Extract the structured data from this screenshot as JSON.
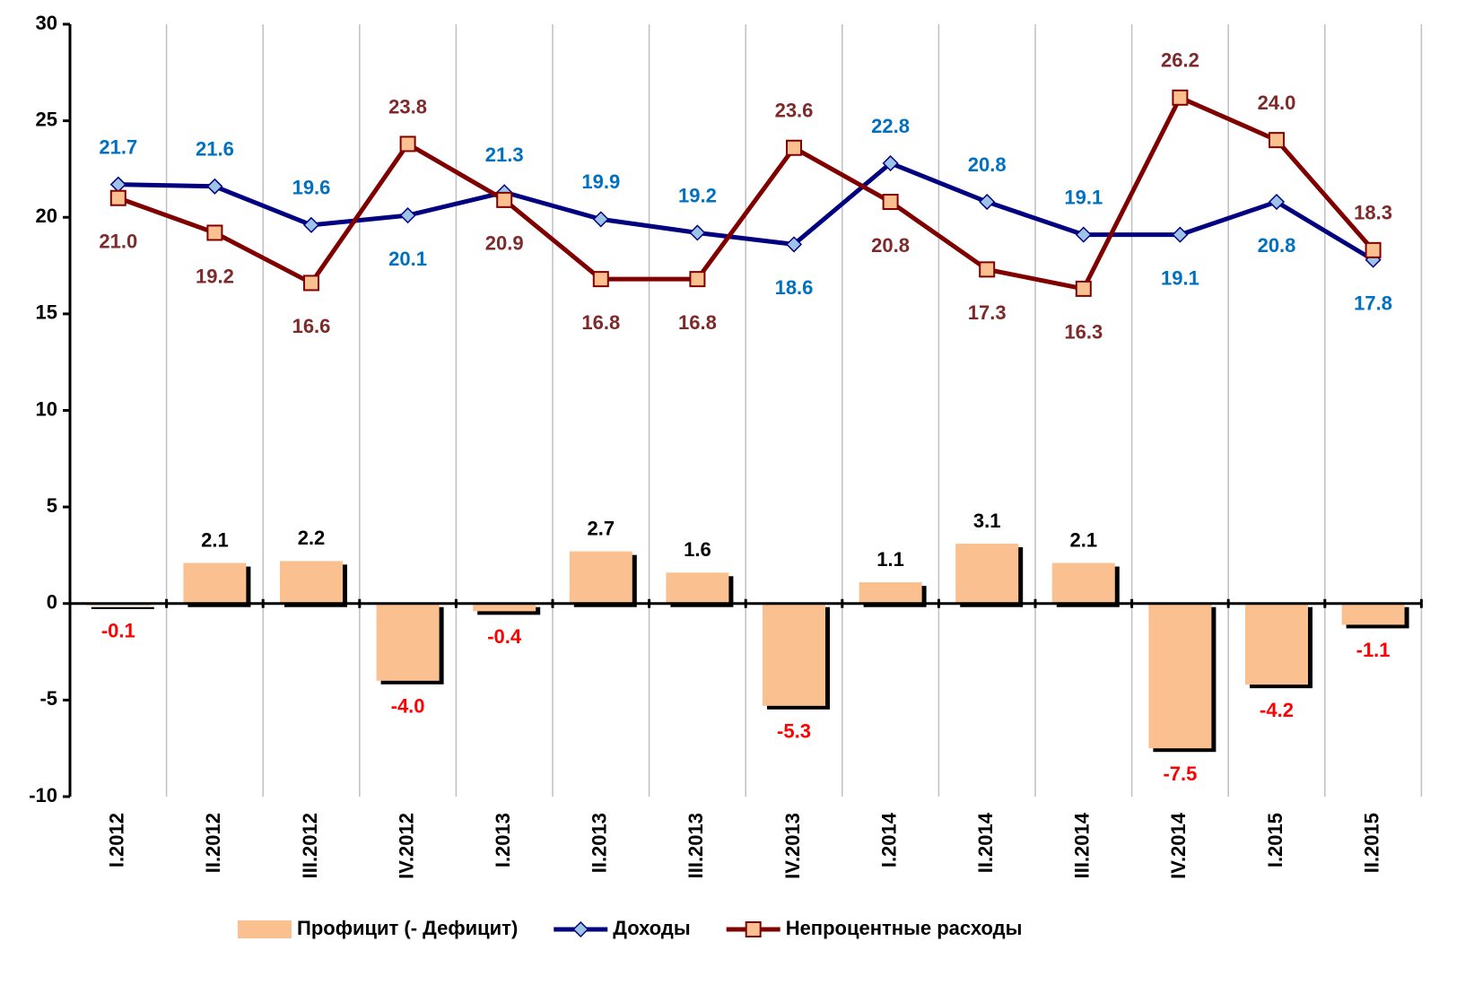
{
  "chart_data": {
    "type": "bar_line",
    "categories": [
      "I.2012",
      "II.2012",
      "III.2012",
      "IV.2012",
      "I.2013",
      "II.2013",
      "III.2013",
      "IV.2013",
      "I.2014",
      "II.2014",
      "III.2014",
      "IV.2014",
      "I.2015",
      "II.2015"
    ],
    "series": [
      {
        "name": "Профицит (- Дефицит)",
        "type": "bar",
        "color": "#fac090",
        "values": [
          -0.1,
          2.1,
          2.2,
          -4.0,
          -0.4,
          2.7,
          1.6,
          -5.3,
          1.1,
          3.1,
          2.1,
          -7.5,
          -4.2,
          -1.1
        ],
        "value_labels": [
          "-0.1",
          "2.1",
          "2.2",
          "-4.0",
          "-0.4",
          "2.7",
          "1.6",
          "-5.3",
          "1.1",
          "3.1",
          "2.1",
          "-7.5",
          "-4.2",
          "-1.1"
        ]
      },
      {
        "name": "Доходы",
        "type": "line",
        "color": "#000080",
        "marker": "diamond",
        "marker_color": "#9dc3e6",
        "label_color": "#0070c0",
        "values": [
          21.7,
          21.6,
          19.6,
          20.1,
          21.3,
          19.9,
          19.2,
          18.6,
          22.8,
          20.8,
          19.1,
          19.1,
          20.8,
          17.8
        ],
        "value_labels": [
          "21.7",
          "21.6",
          "19.6",
          "20.1",
          "21.3",
          "19.9",
          "19.2",
          "18.6",
          "22.8",
          "20.8",
          "19.1",
          "19.1",
          "20.8",
          "17.8"
        ]
      },
      {
        "name": "Непроцентные расходы",
        "type": "line",
        "color": "#800000",
        "marker": "square",
        "marker_color": "#fac090",
        "label_color": "#7f2a2a",
        "values": [
          21.0,
          19.2,
          16.6,
          23.8,
          20.9,
          16.8,
          16.8,
          23.6,
          20.8,
          17.3,
          16.3,
          26.2,
          24.0,
          18.3
        ],
        "value_labels": [
          "21.0",
          "19.2",
          "16.6",
          "23.8",
          "20.9",
          "16.8",
          "16.8",
          "23.6",
          "20.8",
          "17.3",
          "16.3",
          "26.2",
          "24.0",
          "18.3"
        ]
      }
    ],
    "ylim": [
      -10,
      30
    ],
    "yticks": [
      -10,
      -5,
      0,
      5,
      10,
      15,
      20,
      25,
      30
    ],
    "grid": "vertical",
    "legend": "bottom"
  }
}
